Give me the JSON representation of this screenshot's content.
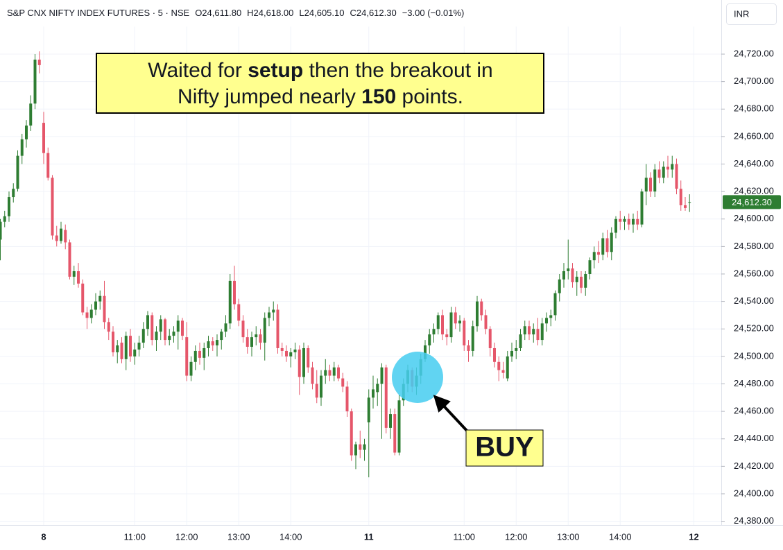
{
  "chart_data": {
    "type": "candlestick",
    "header": {
      "symbol": "S&P CNX NIFTY INDEX FUTURES · 5 · NSE",
      "open": "O24,611.80",
      "high": "H24,618.00",
      "low": "L24,605.10",
      "close": "C24,612.30",
      "change": "−3.00 (−0.01%)"
    },
    "currency": "INR",
    "annotation": [
      "Waited for ",
      "setup",
      " then the breakout in",
      "Nifty jumped nearly ",
      "150",
      " points."
    ],
    "signal": "BUY",
    "up_color": "#2e7d32",
    "down_color": "#e5566a",
    "grid": true,
    "ylim": [
      24380,
      24740
    ],
    "yticks": [
      {
        "value": 24380,
        "label": "24,380.00"
      },
      {
        "value": 24400,
        "label": "24,400.00"
      },
      {
        "value": 24420,
        "label": "24,420.00"
      },
      {
        "value": 24440,
        "label": "24,440.00"
      },
      {
        "value": 24460,
        "label": "24,460.00"
      },
      {
        "value": 24480,
        "label": "24,480.00"
      },
      {
        "value": 24500,
        "label": "24,500.00"
      },
      {
        "value": 24520,
        "label": "24,520.00"
      },
      {
        "value": 24540,
        "label": "24,540.00"
      },
      {
        "value": 24560,
        "label": "24,560.00"
      },
      {
        "value": 24580,
        "label": "24,580.00"
      },
      {
        "value": 24600,
        "label": "24,600.00"
      },
      {
        "value": 24620,
        "label": "24,620.00"
      },
      {
        "value": 24640,
        "label": "24,640.00"
      },
      {
        "value": 24660,
        "label": "24,660.00"
      },
      {
        "value": 24680,
        "label": "24,680.00"
      },
      {
        "value": 24700,
        "label": "24,700.00"
      },
      {
        "value": 24720,
        "label": "24,720.00"
      }
    ],
    "last_price": {
      "value": 24612.3,
      "label": "24,612.30"
    },
    "categories": [
      null,
      null,
      null,
      null,
      null,
      null,
      null,
      null,
      null,
      null,
      "8",
      null,
      null,
      null,
      null,
      null,
      null,
      null,
      null,
      null,
      null,
      null,
      null,
      null,
      null,
      null,
      null,
      null,
      null,
      null,
      null,
      "11:00",
      null,
      null,
      null,
      null,
      null,
      null,
      null,
      null,
      null,
      null,
      null,
      "12:00",
      null,
      null,
      null,
      null,
      null,
      null,
      null,
      null,
      null,
      null,
      null,
      "13:00",
      null,
      null,
      null,
      null,
      null,
      null,
      null,
      null,
      null,
      null,
      null,
      "14:00",
      null,
      null,
      null,
      null,
      null,
      null,
      null,
      null,
      null,
      null,
      null,
      null,
      null,
      null,
      null,
      null,
      null,
      "11",
      null,
      null,
      null,
      null,
      null,
      null,
      null,
      null,
      null,
      null,
      null,
      null,
      null,
      null,
      null,
      null,
      null,
      null,
      null,
      null,
      null,
      "11:00",
      null,
      null,
      null,
      null,
      null,
      null,
      null,
      null,
      null,
      null,
      null,
      "12:00",
      null,
      null,
      null,
      null,
      null,
      null,
      null,
      null,
      null,
      null,
      null,
      "13:00",
      null,
      null,
      null,
      null,
      null,
      null,
      null,
      null,
      null,
      null,
      null,
      "14:00",
      null,
      null,
      null,
      null,
      null,
      null,
      null,
      null,
      null,
      null,
      null,
      null,
      null,
      null,
      null,
      null,
      "12"
    ],
    "open": [
      24585,
      24598,
      24602,
      24616,
      24622,
      24646,
      24658,
      24668,
      24684,
      24716,
      24670,
      24648,
      24630,
      24588,
      24584,
      24592,
      24583,
      24558,
      24562,
      24553,
      24532,
      24528,
      24534,
      24540,
      24544,
      24525,
      24518,
      24503,
      24510,
      24498,
      24515,
      24500,
      24505,
      24510,
      24520,
      24530,
      24512,
      24518,
      24527,
      24512,
      24515,
      24518,
      24526,
      24514,
      24486,
      24496,
      24504,
      24499,
      24506,
      24511,
      24508,
      24512,
      24518,
      24524,
      24555,
      24538,
      24526,
      24514,
      24507,
      24514,
      24516,
      24510,
      24528,
      24532,
      24534,
      24506,
      24504,
      24500,
      24503,
      24505,
      24485,
      24506,
      24492,
      24480,
      24470,
      24486,
      24490,
      24486,
      24492,
      24484,
      24478,
      24460,
      24428,
      24436,
      24432,
      24452,
      24470,
      24474,
      24480,
      24492,
      24448,
      24458,
      24430,
      24468,
      24480,
      24490,
      24478,
      24486,
      24498,
      24508,
      24516,
      24520,
      24530,
      24516,
      24514,
      24532,
      24524,
      24526,
      24508,
      24504,
      24522,
      24540,
      24530,
      24520,
      24506,
      24496,
      24490,
      24484,
      24500,
      24504,
      24506,
      24516,
      24522,
      24516,
      24520,
      24512,
      24524,
      24528,
      24530,
      24546,
      24556,
      24562,
      24564,
      24554,
      24558,
      24550,
      24560,
      24570,
      24576,
      24574,
      24586,
      24576,
      24590,
      24600,
      24598,
      24600,
      24596,
      24600,
      24596,
      24620,
      24630,
      24620,
      24636,
      24630,
      24638,
      24636,
      24640,
      24622,
      24610,
      24611.8,
      null
    ],
    "high": [
      24600,
      24606,
      24620,
      24626,
      24650,
      24662,
      24672,
      24690,
      24720,
      24722,
      24678,
      24652,
      24632,
      24595,
      24598,
      24596,
      24585,
      24566,
      24568,
      24556,
      24536,
      24538,
      24546,
      24548,
      24555,
      24528,
      24522,
      24512,
      24514,
      24518,
      24520,
      24510,
      24515,
      24525,
      24533,
      24532,
      24522,
      24530,
      24528,
      24520,
      24522,
      24530,
      24528,
      24525,
      24500,
      24508,
      24510,
      24510,
      24515,
      24514,
      24516,
      24520,
      24530,
      24560,
      24566,
      24542,
      24530,
      24520,
      24518,
      24522,
      24520,
      24532,
      24536,
      24540,
      24538,
      24510,
      24508,
      24506,
      24510,
      24508,
      24510,
      24508,
      24496,
      24490,
      24490,
      24498,
      24494,
      24496,
      24494,
      24488,
      24482,
      24462,
      24438,
      24446,
      24440,
      24476,
      24486,
      24484,
      24495,
      24494,
      24462,
      24462,
      24472,
      24484,
      24494,
      24492,
      24492,
      24502,
      24512,
      24520,
      24524,
      24532,
      24534,
      24520,
      24536,
      24536,
      24530,
      24528,
      24512,
      24526,
      24544,
      24542,
      24534,
      24522,
      24510,
      24500,
      24496,
      24504,
      24510,
      24512,
      24520,
      24526,
      24526,
      24524,
      24528,
      24528,
      24532,
      24534,
      24548,
      24560,
      24568,
      24585,
      24568,
      24562,
      24562,
      24562,
      24572,
      24580,
      24584,
      24590,
      24592,
      24594,
      24602,
      24606,
      24602,
      24604,
      24604,
      24606,
      24622,
      24640,
      24634,
      24640,
      24642,
      24642,
      24646,
      24646,
      24644,
      24628,
      24616,
      24618,
      null
    ],
    "low": [
      24570,
      24594,
      24598,
      24612,
      24620,
      24640,
      24652,
      24664,
      24680,
      24706,
      24640,
      24628,
      24585,
      24580,
      24582,
      24578,
      24556,
      24552,
      24550,
      24530,
      24520,
      24524,
      24530,
      24534,
      24520,
      24512,
      24500,
      24495,
      24495,
      24490,
      24496,
      24494,
      24500,
      24506,
      24515,
      24508,
      24504,
      24512,
      24508,
      24508,
      24510,
      24505,
      24512,
      24482,
      24482,
      24490,
      24494,
      24490,
      24500,
      24504,
      24500,
      24505,
      24514,
      24520,
      24534,
      24522,
      24510,
      24502,
      24500,
      24508,
      24505,
      24497,
      24522,
      24526,
      24502,
      24500,
      24496,
      24492,
      24498,
      24472,
      24480,
      24488,
      24476,
      24466,
      24464,
      24480,
      24482,
      24482,
      24482,
      24474,
      24456,
      24424,
      24418,
      24426,
      24424,
      24412,
      24462,
      24464,
      24440,
      24444,
      24440,
      24428,
      24428,
      24464,
      24474,
      24474,
      24472,
      24480,
      24496,
      24502,
      24510,
      24516,
      24512,
      24508,
      24510,
      24520,
      24518,
      24504,
      24496,
      24500,
      24518,
      24526,
      24516,
      24500,
      24492,
      24482,
      24484,
      24482,
      24496,
      24498,
      24504,
      24512,
      24512,
      24510,
      24508,
      24508,
      24518,
      24522,
      24526,
      24540,
      24550,
      24556,
      24550,
      24544,
      24546,
      24544,
      24556,
      24564,
      24568,
      24570,
      24572,
      24570,
      24586,
      24592,
      24592,
      24592,
      24590,
      24592,
      24594,
      24610,
      24616,
      24616,
      24626,
      24626,
      24630,
      24630,
      24618,
      24606,
      24606,
      24605.1,
      null
    ],
    "close": [
      24598,
      24602,
      24616,
      24622,
      24646,
      24658,
      24668,
      24684,
      24716,
      24712,
      24648,
      24630,
      24588,
      24584,
      24593,
      24583,
      24558,
      24562,
      24553,
      24532,
      24528,
      24534,
      24540,
      24544,
      24525,
      24518,
      24503,
      24508,
      24498,
      24515,
      24500,
      24505,
      24510,
      24520,
      24530,
      24512,
      24518,
      24527,
      24512,
      24515,
      24518,
      24526,
      24515,
      24486,
      24496,
      24504,
      24499,
      24506,
      24511,
      24508,
      24512,
      24518,
      24524,
      24555,
      24538,
      24526,
      24514,
      24507,
      24514,
      24516,
      24510,
      24528,
      24532,
      24534,
      24506,
      24504,
      24500,
      24503,
      24505,
      24485,
      24506,
      24492,
      24480,
      24470,
      24486,
      24490,
      24486,
      24492,
      24484,
      24478,
      24460,
      24428,
      24436,
      24432,
      24436,
      24470,
      24476,
      24480,
      24492,
      24448,
      24458,
      24430,
      24468,
      24480,
      24490,
      24478,
      24486,
      24498,
      24508,
      24516,
      24520,
      24530,
      24516,
      24514,
      24532,
      24524,
      24526,
      24508,
      24504,
      24522,
      24540,
      24530,
      24520,
      24506,
      24496,
      24490,
      24488,
      24500,
      24504,
      24506,
      24516,
      24522,
      24516,
      24520,
      24512,
      24524,
      24528,
      24530,
      24546,
      24556,
      24562,
      24564,
      24554,
      24558,
      24550,
      24560,
      24570,
      24576,
      24574,
      24586,
      24576,
      24590,
      24600,
      24598,
      24600,
      24596,
      24600,
      24596,
      24620,
      24630,
      24620,
      24636,
      24630,
      24638,
      24636,
      24640,
      24622,
      24610,
      24608,
      24612.3,
      null
    ]
  }
}
